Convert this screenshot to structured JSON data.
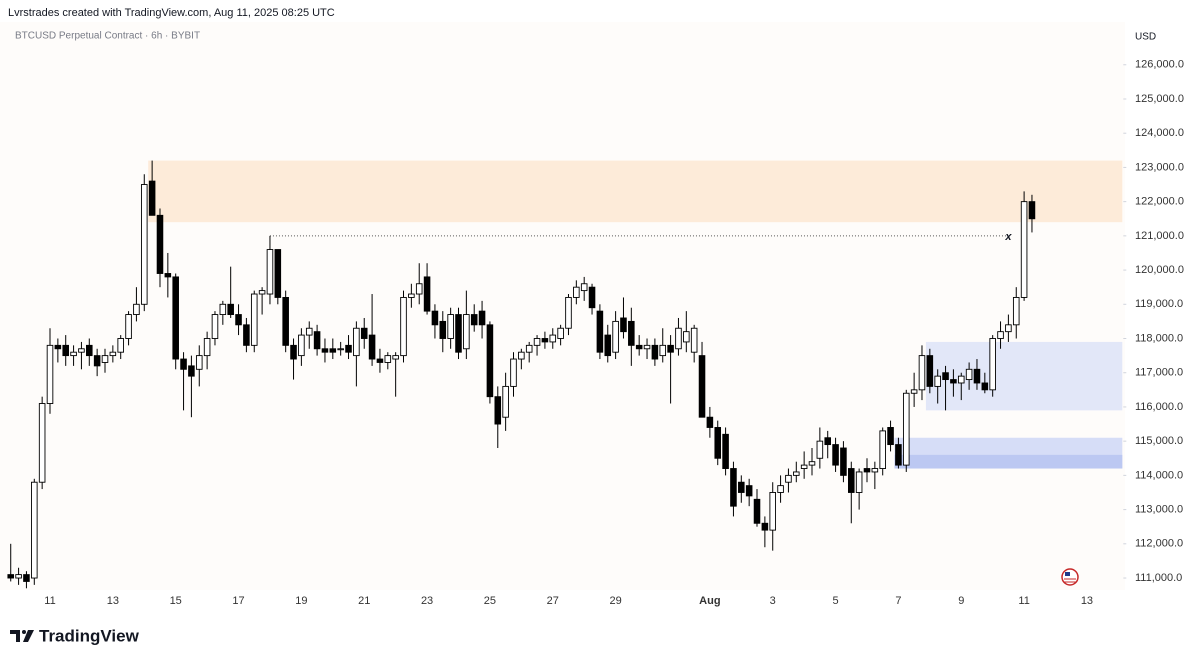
{
  "chart_data": {
    "type": "candlestick",
    "title": "Lvrstrades created with TradingView.com, Aug 11, 2025 08:25 UTC",
    "subtitle": "BTCUSD Perpetual Contract · 6h · BYBIT",
    "y_axis_label": "USD",
    "watermark": "TradingView",
    "up_color": "#ffffff",
    "down_color": "#000000",
    "categories": [
      null,
      null,
      null,
      null,
      null,
      "11",
      null,
      null,
      null,
      null,
      null,
      null,
      null,
      "13",
      null,
      null,
      null,
      null,
      null,
      null,
      null,
      "15",
      null,
      null,
      null,
      null,
      null,
      null,
      null,
      "17",
      null,
      null,
      null,
      null,
      null,
      null,
      null,
      "19",
      null,
      null,
      null,
      null,
      null,
      null,
      null,
      "21",
      null,
      null,
      null,
      null,
      null,
      null,
      null,
      "23",
      null,
      null,
      null,
      null,
      null,
      null,
      null,
      "25",
      null,
      null,
      null,
      null,
      null,
      null,
      null,
      "27",
      null,
      null,
      null,
      null,
      null,
      null,
      null,
      "29",
      null,
      null,
      null,
      null,
      null,
      null,
      null,
      null,
      null,
      null,
      null,
      "Aug",
      null,
      null,
      null,
      null,
      null,
      null,
      null,
      "3",
      null,
      null,
      null,
      null,
      null,
      null,
      null,
      "5",
      null,
      null,
      null,
      null,
      null,
      null,
      null,
      "7",
      null,
      null,
      null,
      null,
      null,
      null,
      null,
      "9",
      null,
      null,
      null,
      null,
      null,
      null,
      null,
      "11",
      null,
      null,
      null,
      null,
      null,
      null,
      null,
      "13",
      null,
      null,
      null,
      null
    ],
    "open": [
      111100,
      111000,
      111100,
      111000,
      113800,
      116100,
      117800,
      117800,
      117500,
      117600,
      117800,
      117500,
      117300,
      117500,
      117600,
      118000,
      118700,
      119000,
      122600,
      121600,
      119900,
      119800,
      117400,
      117200,
      117100,
      117500,
      118000,
      118700,
      119000,
      118700,
      118400,
      117800,
      119300,
      119300,
      120600,
      119200,
      117800,
      117500,
      118100,
      118200,
      117700,
      117700,
      117700,
      117800,
      117500,
      118300,
      118100,
      117400,
      117300,
      117400,
      117500,
      119200,
      119300,
      119800,
      118800,
      118500,
      118000,
      118700,
      117700,
      118700,
      118800,
      118400,
      116300,
      115700,
      116600,
      117400,
      117600,
      117800,
      118000,
      117900,
      118000,
      118300,
      119200,
      119400,
      119500,
      118800,
      118100,
      117600,
      118600,
      118500,
      117800,
      117700,
      117800,
      117500,
      117800,
      117700,
      117900,
      117600,
      117500,
      115700,
      115400,
      115200,
      114200,
      113800,
      113700,
      113300,
      112600,
      112400,
      113500,
      113800,
      114000,
      114200,
      114300,
      114500,
      115100,
      114900,
      114800,
      114200,
      113500,
      114200,
      114100,
      114200,
      115400,
      114900,
      114300,
      116400,
      116500,
      117500,
      116600,
      117000,
      116800,
      116700,
      116800,
      117100,
      116700,
      116500,
      118000,
      118200,
      118400,
      119200,
      122000,
      null,
      null,
      null,
      null,
      null,
      null,
      null,
      null,
      null,
      null,
      null
    ],
    "high": [
      112000,
      111300,
      111200,
      113900,
      116300,
      118300,
      118000,
      118100,
      117800,
      117900,
      118000,
      117700,
      117700,
      117800,
      118100,
      118800,
      119500,
      122800,
      123200,
      121800,
      120500,
      119900,
      117600,
      117500,
      117800,
      118200,
      118800,
      119100,
      120100,
      119000,
      118600,
      119400,
      119500,
      121000,
      120600,
      119400,
      118000,
      118300,
      118500,
      118400,
      118000,
      118000,
      117900,
      118100,
      118500,
      118600,
      119300,
      117700,
      117600,
      117600,
      119400,
      119600,
      120200,
      120200,
      119000,
      118800,
      118900,
      118900,
      119400,
      119000,
      119100,
      118500,
      116600,
      117000,
      117600,
      117700,
      117900,
      118100,
      118200,
      118300,
      118400,
      119300,
      119700,
      119800,
      119600,
      119000,
      118400,
      118800,
      119200,
      118900,
      118100,
      118000,
      118000,
      118300,
      118100,
      118600,
      118800,
      118400,
      117900,
      116000,
      115600,
      115400,
      114400,
      114000,
      113900,
      113600,
      112800,
      113800,
      114000,
      114200,
      114400,
      114700,
      114800,
      115400,
      115300,
      115100,
      115000,
      114400,
      114200,
      114500,
      114400,
      115400,
      115600,
      115100,
      116500,
      117000,
      117800,
      117700,
      117100,
      117200,
      117100,
      117000,
      117300,
      117400,
      117000,
      118100,
      118500,
      118700,
      119500,
      122300,
      122200,
      null,
      null,
      null,
      null,
      null,
      null,
      null,
      null,
      null,
      null,
      null
    ],
    "low": [
      110900,
      110800,
      110700,
      110800,
      113600,
      115800,
      117300,
      117200,
      117200,
      117100,
      117200,
      116900,
      117000,
      117300,
      117400,
      117800,
      118500,
      118800,
      121600,
      119500,
      119200,
      117100,
      115900,
      115700,
      116600,
      117100,
      117800,
      118400,
      118600,
      118100,
      117600,
      117600,
      118700,
      119000,
      119000,
      117600,
      116800,
      117200,
      117700,
      117500,
      117300,
      117400,
      117500,
      117400,
      116600,
      117700,
      117200,
      117000,
      117100,
      116300,
      117300,
      118900,
      119000,
      118700,
      118000,
      117600,
      117700,
      117400,
      117400,
      118200,
      118000,
      116100,
      114800,
      115300,
      116300,
      117100,
      117300,
      117500,
      117700,
      117700,
      117800,
      118100,
      119000,
      119100,
      118700,
      117400,
      117300,
      117400,
      118000,
      117200,
      117500,
      117400,
      117200,
      117300,
      116100,
      117500,
      117600,
      117300,
      115700,
      115100,
      114300,
      114000,
      112800,
      113200,
      113100,
      112500,
      111900,
      111800,
      113200,
      113500,
      113800,
      113900,
      114000,
      114200,
      114500,
      114100,
      113800,
      112600,
      113000,
      113800,
      113600,
      114000,
      114700,
      114200,
      114100,
      116000,
      116200,
      116400,
      116100,
      115900,
      116300,
      116200,
      116500,
      116500,
      116400,
      116300,
      117700,
      117900,
      118000,
      119100,
      121100,
      null,
      null,
      null,
      null,
      null,
      null,
      null,
      null,
      null,
      null,
      null
    ],
    "close": [
      111000,
      111100,
      110900,
      113800,
      116100,
      117800,
      117700,
      117500,
      117600,
      117700,
      117500,
      117200,
      117500,
      117600,
      118000,
      118700,
      119000,
      122500,
      121600,
      119900,
      119800,
      117400,
      117100,
      116900,
      117500,
      118000,
      118700,
      119000,
      118700,
      118400,
      117800,
      119300,
      119400,
      120600,
      119200,
      117800,
      117400,
      118100,
      118300,
      117700,
      117600,
      117600,
      117700,
      117600,
      118300,
      118000,
      117400,
      117300,
      117500,
      117500,
      119200,
      119300,
      119600,
      118800,
      118400,
      118000,
      118700,
      117600,
      118700,
      118400,
      118400,
      116300,
      115500,
      116600,
      117400,
      117600,
      117800,
      118000,
      117900,
      118100,
      118300,
      119200,
      119500,
      119600,
      118900,
      117600,
      117500,
      118500,
      118200,
      117800,
      117700,
      117800,
      117400,
      117800,
      117600,
      118300,
      118200,
      118300,
      115700,
      115400,
      114500,
      114200,
      113100,
      113500,
      113400,
      112600,
      112400,
      113500,
      113700,
      114000,
      114100,
      114300,
      114400,
      115000,
      114900,
      114300,
      114000,
      113500,
      114100,
      114100,
      114200,
      115300,
      114900,
      114300,
      116400,
      116500,
      117500,
      116600,
      116900,
      116800,
      116700,
      116900,
      117100,
      116700,
      116500,
      118000,
      118200,
      118400,
      119200,
      122000,
      121500,
      null,
      null,
      null,
      null,
      null,
      null,
      null,
      null,
      null,
      null,
      null
    ],
    "ylim": [
      110650,
      127250
    ],
    "yticks": [
      {
        "value": 111000,
        "label": "111,000.0"
      },
      {
        "value": 112000,
        "label": "112,000.0"
      },
      {
        "value": 113000,
        "label": "113,000.0"
      },
      {
        "value": 114000,
        "label": "114,000.0"
      },
      {
        "value": 115000,
        "label": "115,000.0"
      },
      {
        "value": 116000,
        "label": "116,000.0"
      },
      {
        "value": 117000,
        "label": "117,000.0"
      },
      {
        "value": 118000,
        "label": "118,000.0"
      },
      {
        "value": 119000,
        "label": "119,000.0"
      },
      {
        "value": 120000,
        "label": "120,000.0"
      },
      {
        "value": 121000,
        "label": "121,000.0"
      },
      {
        "value": 122000,
        "label": "122,000.0"
      },
      {
        "value": 123000,
        "label": "123,000.0"
      },
      {
        "value": 124000,
        "label": "124,000.0"
      },
      {
        "value": 125000,
        "label": "125,000.0"
      },
      {
        "value": 126000,
        "label": "126,000.0"
      }
    ],
    "zones": [
      {
        "from": 121400,
        "to": 123200,
        "start": 18,
        "color": "#fdebd9"
      },
      {
        "from": 115900,
        "to": 117900,
        "start": 117,
        "color": "#e2e7f8"
      },
      {
        "from": 114200,
        "to": 115100,
        "start": 113,
        "color": "#d6ddf7"
      },
      {
        "from": 114200,
        "to": 114600,
        "start": 113,
        "color": "#bcc8f2"
      }
    ],
    "level": {
      "value": 121000,
      "start": 33,
      "end": 127,
      "marker": "x"
    }
  }
}
